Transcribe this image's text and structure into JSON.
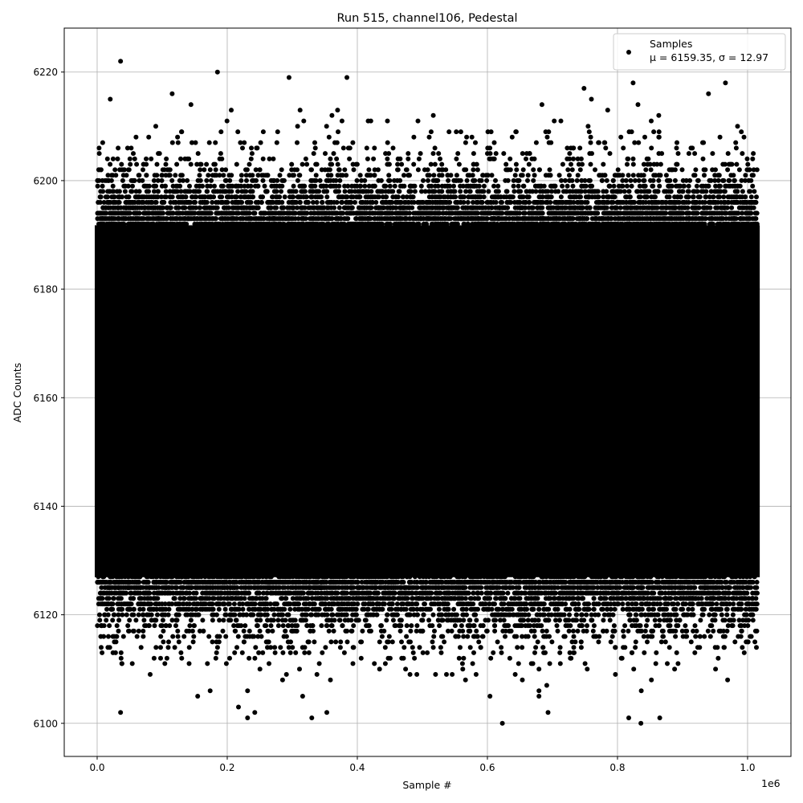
{
  "chart_data": {
    "type": "scatter",
    "title": "Run 515, channel106, Pedestal",
    "xlabel": "Sample #",
    "ylabel": "ADC Counts",
    "x_offset_label": "1e6",
    "xlim": [
      -0.0506,
      1.0667
    ],
    "ylim": [
      6093.9,
      6228.1
    ],
    "x_scale": 1000000,
    "xticks": [
      0.0,
      0.2,
      0.4,
      0.6,
      0.8,
      1.0
    ],
    "xtick_labels": [
      "0.0",
      "0.2",
      "0.4",
      "0.6",
      "0.8",
      "1.0"
    ],
    "yticks": [
      6100,
      6120,
      6140,
      6160,
      6180,
      6200,
      6220
    ],
    "ytick_labels": [
      "6100",
      "6120",
      "6140",
      "6160",
      "6180",
      "6200",
      "6220"
    ],
    "grid": true,
    "legend_position": "top-right",
    "series": [
      {
        "name": "Samples",
        "stats_label": "μ = 6159.35, σ = 12.97",
        "mean": 6159.35,
        "sigma": 12.97,
        "x_range": [
          0,
          1015000
        ],
        "color": "#000000",
        "marker": "circle",
        "notable_points": [
          {
            "x": 36000,
            "y": 6222
          },
          {
            "x": 185000,
            "y": 6220
          },
          {
            "x": 295000,
            "y": 6219
          },
          {
            "x": 384000,
            "y": 6219
          },
          {
            "x": 824000,
            "y": 6218
          },
          {
            "x": 966000,
            "y": 6218
          },
          {
            "x": 36000,
            "y": 6102
          },
          {
            "x": 330000,
            "y": 6101
          },
          {
            "x": 865000,
            "y": 6101
          },
          {
            "x": 623000,
            "y": 6100
          },
          {
            "x": 836000,
            "y": 6100
          }
        ]
      }
    ]
  }
}
